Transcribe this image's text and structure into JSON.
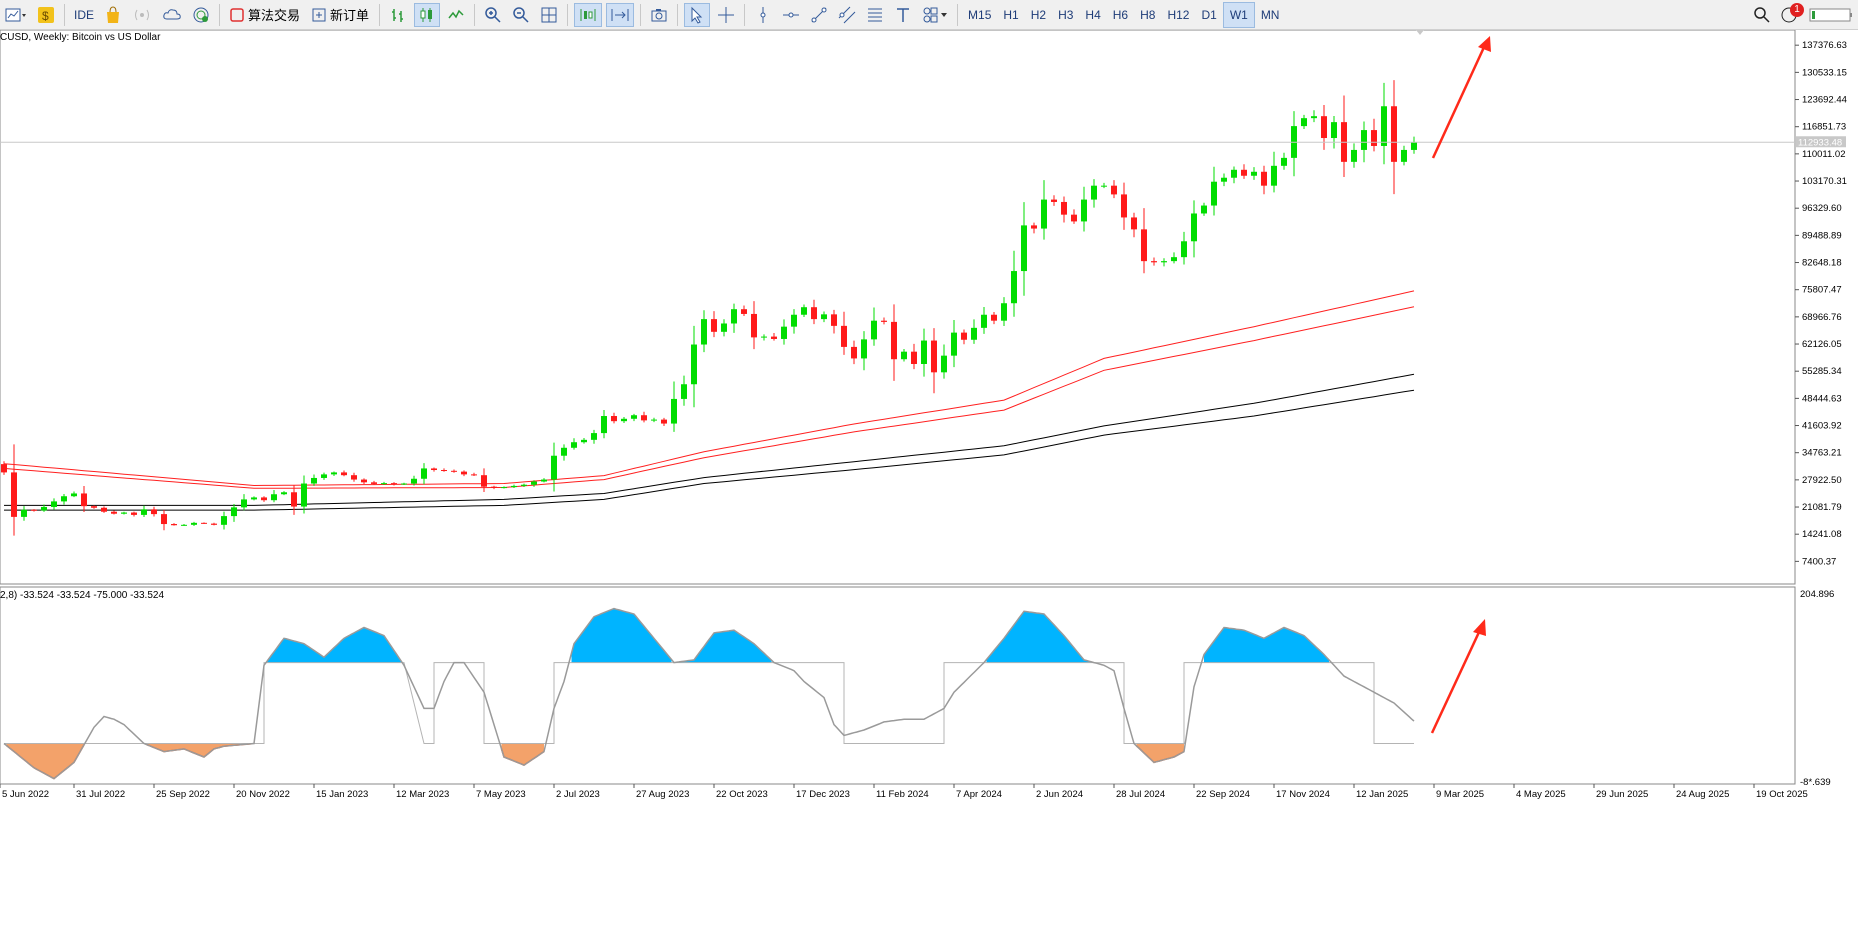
{
  "toolbar": {
    "ide_label": "IDE",
    "algo_label": "算法交易",
    "new_order_label": "新订单",
    "notification_count": "1",
    "timeframes": [
      "M15",
      "H1",
      "H2",
      "H3",
      "H4",
      "H6",
      "H8",
      "H12",
      "D1",
      "W1",
      "MN"
    ],
    "active_timeframe": "W1"
  },
  "colors": {
    "bull": "#00dd00",
    "bear": "#ff1a1a",
    "ma_red": "#ff2020",
    "ma_black": "#000000",
    "osc_pos": "#00b4ff",
    "osc_neg": "#f3a26a",
    "arrow": "#ff2a1a"
  },
  "chart_data": [
    {
      "type": "candlestick",
      "title": "CUSD, Weekly:  Bitcoin vs US Dollar",
      "ylim": [
        1700,
        141200
      ],
      "y_ticks": [
        "137376.63",
        "130533.15",
        "123692.44",
        "116851.73",
        "110011.02",
        "103170.31",
        "96329.60",
        "89488.89",
        "82648.18",
        "75807.47",
        "68966.76",
        "62126.05",
        "55285.34",
        "48444.63",
        "41603.92",
        "34763.21",
        "27922.50",
        "21081.79",
        "14241.08",
        "7400.37"
      ],
      "current_price_tag": "112933.48",
      "current_price": 112933.48,
      "x_ticks": [
        "5 Jun 2022",
        "31 Jul 2022",
        "25 Sep 2022",
        "20 Nov 2022",
        "15 Jan 2023",
        "12 Mar 2023",
        "7 May 2023",
        "2 Jul 2023",
        "27 Aug 2023",
        "22 Oct 2023",
        "17 Dec 2023",
        "11 Feb 2024",
        "7 Apr 2024",
        "2 Jun 2024",
        "28 Jul 2024",
        "22 Sep 2024",
        "17 Nov 2024",
        "12 Jan 2025",
        "9 Mar 2025",
        "4 May 2025",
        "29 Jun 2025",
        "24 Aug 2025",
        "19 Oct 2025"
      ],
      "close_anchors": [
        [
          0,
          29800
        ],
        [
          1,
          18600
        ],
        [
          2,
          20400
        ],
        [
          3,
          20200
        ],
        [
          4,
          21100
        ],
        [
          5,
          22500
        ],
        [
          6,
          23800
        ],
        [
          7,
          24500
        ],
        [
          8,
          21300
        ],
        [
          9,
          20900
        ],
        [
          10,
          19900
        ],
        [
          11,
          19400
        ],
        [
          12,
          19700
        ],
        [
          13,
          19100
        ],
        [
          14,
          20500
        ],
        [
          15,
          19300
        ],
        [
          16,
          16800
        ],
        [
          17,
          16500
        ],
        [
          18,
          16600
        ],
        [
          19,
          17100
        ],
        [
          20,
          16900
        ],
        [
          21,
          16600
        ],
        [
          22,
          18800
        ],
        [
          23,
          21000
        ],
        [
          24,
          23000
        ],
        [
          25,
          23500
        ],
        [
          26,
          22800
        ],
        [
          27,
          24300
        ],
        [
          28,
          24800
        ],
        [
          29,
          21200
        ],
        [
          30,
          27000
        ],
        [
          31,
          28400
        ],
        [
          32,
          29300
        ],
        [
          33,
          29800
        ],
        [
          34,
          29100
        ],
        [
          35,
          28000
        ],
        [
          36,
          27300
        ],
        [
          37,
          26900
        ],
        [
          38,
          27100
        ],
        [
          39,
          26800
        ],
        [
          40,
          27000
        ],
        [
          41,
          28200
        ],
        [
          42,
          30800
        ],
        [
          43,
          30400
        ],
        [
          44,
          30200
        ],
        [
          45,
          30000
        ],
        [
          46,
          29300
        ],
        [
          47,
          29100
        ],
        [
          48,
          26200
        ],
        [
          49,
          25900
        ],
        [
          50,
          26100
        ],
        [
          51,
          26400
        ],
        [
          52,
          26700
        ],
        [
          53,
          27500
        ],
        [
          54,
          28000
        ],
        [
          55,
          34000
        ],
        [
          56,
          36000
        ],
        [
          57,
          37400
        ],
        [
          58,
          38000
        ],
        [
          59,
          39700
        ],
        [
          60,
          44000
        ],
        [
          61,
          42700
        ],
        [
          62,
          43300
        ],
        [
          63,
          44200
        ],
        [
          64,
          42900
        ],
        [
          65,
          43100
        ],
        [
          66,
          42100
        ],
        [
          67,
          48300
        ],
        [
          68,
          52000
        ],
        [
          69,
          62000
        ],
        [
          70,
          68400
        ],
        [
          71,
          65200
        ],
        [
          72,
          67300
        ],
        [
          73,
          70900
        ],
        [
          74,
          69700
        ],
        [
          75,
          63800
        ],
        [
          76,
          64000
        ],
        [
          77,
          63400
        ],
        [
          78,
          66500
        ],
        [
          79,
          69500
        ],
        [
          80,
          71400
        ],
        [
          81,
          68400
        ],
        [
          82,
          69600
        ],
        [
          83,
          66700
        ],
        [
          84,
          61400
        ],
        [
          85,
          58500
        ],
        [
          86,
          63300
        ],
        [
          87,
          68000
        ],
        [
          88,
          67700
        ],
        [
          89,
          58300
        ],
        [
          90,
          60200
        ],
        [
          91,
          57100
        ],
        [
          92,
          63000
        ],
        [
          93,
          55000
        ],
        [
          94,
          59200
        ],
        [
          95,
          65000
        ],
        [
          96,
          63200
        ],
        [
          97,
          66200
        ],
        [
          98,
          69500
        ],
        [
          99,
          68000
        ],
        [
          100,
          72400
        ],
        [
          101,
          80500
        ],
        [
          102,
          92000
        ],
        [
          103,
          91200
        ],
        [
          104,
          98500
        ],
        [
          105,
          97900
        ],
        [
          106,
          94700
        ],
        [
          107,
          93000
        ],
        [
          108,
          98500
        ],
        [
          109,
          102000
        ],
        [
          110,
          102000
        ],
        [
          111,
          99800
        ],
        [
          112,
          94000
        ],
        [
          113,
          91000
        ],
        [
          114,
          83000
        ],
        [
          115,
          82700
        ],
        [
          116,
          83000
        ],
        [
          117,
          84000
        ],
        [
          118,
          88000
        ],
        [
          119,
          95000
        ],
        [
          120,
          97000
        ],
        [
          121,
          103000
        ],
        [
          122,
          104000
        ],
        [
          123,
          106000
        ],
        [
          124,
          104500
        ],
        [
          125,
          105500
        ],
        [
          126,
          102000
        ],
        [
          127,
          107000
        ],
        [
          128,
          109000
        ],
        [
          129,
          117000
        ],
        [
          130,
          119000
        ],
        [
          131,
          119500
        ],
        [
          132,
          114000
        ],
        [
          133,
          118000
        ],
        [
          134,
          108000
        ],
        [
          135,
          111000
        ],
        [
          136,
          116000
        ],
        [
          137,
          112000
        ],
        [
          138,
          122000
        ],
        [
          139,
          108000
        ],
        [
          140,
          111000
        ],
        [
          141,
          112933
        ]
      ],
      "moving_averages": [
        {
          "color": "red",
          "anchors": [
            [
              0,
              32000
            ],
            [
              25,
              26500
            ],
            [
              50,
              27000
            ],
            [
              60,
              29000
            ],
            [
              70,
              35000
            ],
            [
              85,
              42000
            ],
            [
              100,
              48000
            ],
            [
              110,
              58500
            ],
            [
              125,
              66500
            ],
            [
              141,
              75500
            ]
          ]
        },
        {
          "color": "red",
          "anchors": [
            [
              0,
              30800
            ],
            [
              25,
              25800
            ],
            [
              50,
              26000
            ],
            [
              60,
              28000
            ],
            [
              70,
              33500
            ],
            [
              85,
              40000
            ],
            [
              100,
              45500
            ],
            [
              110,
              55500
            ],
            [
              125,
              63000
            ],
            [
              141,
              71500
            ]
          ]
        },
        {
          "color": "black",
          "anchors": [
            [
              0,
              21500
            ],
            [
              25,
              21500
            ],
            [
              50,
              23000
            ],
            [
              60,
              24500
            ],
            [
              70,
              28500
            ],
            [
              85,
              32500
            ],
            [
              100,
              36500
            ],
            [
              110,
              41500
            ],
            [
              125,
              47200
            ],
            [
              141,
              54500
            ]
          ]
        },
        {
          "color": "black",
          "anchors": [
            [
              0,
              20300
            ],
            [
              25,
              20300
            ],
            [
              50,
              21500
            ],
            [
              60,
              23000
            ],
            [
              70,
              27000
            ],
            [
              85,
              30500
            ],
            [
              100,
              34200
            ],
            [
              110,
              39200
            ],
            [
              125,
              44000
            ],
            [
              141,
              50500
            ]
          ]
        }
      ]
    },
    {
      "type": "area",
      "header": "2,8) -33.524 -33.524 -75.000 -33.524",
      "ylim": [
        -150,
        215
      ],
      "y_ticks": [
        "204.896"
      ],
      "bottom_label": "-8*.639",
      "upper_threshold": 75,
      "lower_threshold": -75,
      "value_anchors": [
        [
          0,
          -75
        ],
        [
          3,
          -120
        ],
        [
          5,
          -140
        ],
        [
          7,
          -110
        ],
        [
          9,
          -45
        ],
        [
          10,
          -25
        ],
        [
          11,
          -30
        ],
        [
          12,
          -40
        ],
        [
          14,
          -75
        ],
        [
          16,
          -90
        ],
        [
          18,
          -85
        ],
        [
          20,
          -100
        ],
        [
          21,
          -85
        ],
        [
          22,
          -80
        ],
        [
          25,
          -75
        ],
        [
          26,
          70
        ],
        [
          28,
          120
        ],
        [
          30,
          110
        ],
        [
          32,
          85
        ],
        [
          34,
          120
        ],
        [
          36,
          140
        ],
        [
          38,
          125
        ],
        [
          40,
          70
        ],
        [
          42,
          -10
        ],
        [
          43,
          -10
        ],
        [
          44,
          40
        ],
        [
          45,
          75
        ],
        [
          46,
          75
        ],
        [
          48,
          20
        ],
        [
          50,
          -100
        ],
        [
          52,
          -115
        ],
        [
          54,
          -90
        ],
        [
          55,
          -10
        ],
        [
          56,
          40
        ],
        [
          57,
          110
        ],
        [
          59,
          160
        ],
        [
          61,
          175
        ],
        [
          63,
          165
        ],
        [
          65,
          120
        ],
        [
          67,
          75
        ],
        [
          69,
          80
        ],
        [
          71,
          130
        ],
        [
          73,
          135
        ],
        [
          75,
          110
        ],
        [
          77,
          75
        ],
        [
          79,
          60
        ],
        [
          80,
          40
        ],
        [
          82,
          10
        ],
        [
          83,
          -40
        ],
        [
          84,
          -60
        ],
        [
          86,
          -50
        ],
        [
          88,
          -35
        ],
        [
          90,
          -30
        ],
        [
          92,
          -30
        ],
        [
          94,
          -10
        ],
        [
          95,
          20
        ],
        [
          98,
          75
        ],
        [
          100,
          120
        ],
        [
          102,
          170
        ],
        [
          104,
          165
        ],
        [
          106,
          125
        ],
        [
          108,
          80
        ],
        [
          110,
          70
        ],
        [
          111,
          60
        ],
        [
          112,
          -10
        ],
        [
          113,
          -75
        ],
        [
          115,
          -110
        ],
        [
          117,
          -100
        ],
        [
          118,
          -90
        ],
        [
          119,
          30
        ],
        [
          120,
          90
        ],
        [
          122,
          140
        ],
        [
          124,
          135
        ],
        [
          126,
          120
        ],
        [
          128,
          140
        ],
        [
          130,
          125
        ],
        [
          132,
          90
        ],
        [
          134,
          50
        ],
        [
          136,
          30
        ],
        [
          139,
          0
        ],
        [
          141,
          -33.5
        ]
      ],
      "signal_line_note": "square wave between -75 and 75",
      "signal_segments": [
        [
          0,
          -75
        ],
        [
          26,
          -75
        ],
        [
          26,
          75
        ],
        [
          40,
          75
        ],
        [
          42,
          -75
        ],
        [
          43,
          -75
        ],
        [
          43,
          75
        ],
        [
          48,
          75
        ],
        [
          48,
          -75
        ],
        [
          55,
          -75
        ],
        [
          55,
          75
        ],
        [
          84,
          75
        ],
        [
          84,
          -75
        ],
        [
          94,
          -75
        ],
        [
          94,
          75
        ],
        [
          112,
          75
        ],
        [
          112,
          -75
        ],
        [
          118,
          -75
        ],
        [
          118,
          75
        ],
        [
          137,
          75
        ],
        [
          137,
          -75
        ],
        [
          141,
          -75
        ]
      ]
    }
  ]
}
